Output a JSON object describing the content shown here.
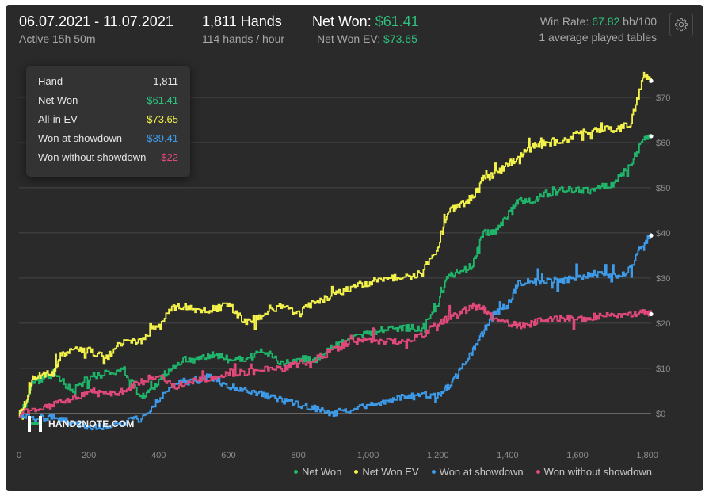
{
  "header": {
    "date_range": "06.07.2021 - 11.07.2021",
    "active": "Active 15h 50m",
    "hands_label": "1,811 Hands",
    "hands_rate": "114 hands / hour",
    "net_won_label": "Net Won:",
    "net_won_value": "$61.41",
    "net_won_ev_label": "Net Won  EV:",
    "net_won_ev_value": "$73.65",
    "win_rate_label": "Win Rate:",
    "win_rate_value": "67.82",
    "win_rate_unit": "bb/100",
    "tables": "1 average played tables",
    "settings_icon": "gear-icon"
  },
  "tooltip": {
    "rows": [
      {
        "label": "Hand",
        "value": "1,811",
        "color": "#e6e6e6"
      },
      {
        "label": "Net Won",
        "value": "$61.41",
        "color": "#2ec27e"
      },
      {
        "label": "All-in EV",
        "value": "$73.65",
        "color": "#f2f24a"
      },
      {
        "label": "Won at showdown",
        "value": "$39.41",
        "color": "#3d9be9"
      },
      {
        "label": "Won without showdown",
        "value": "$22",
        "color": "#e0497a"
      }
    ]
  },
  "logo": {
    "text": "HAND2NOTE.COM"
  },
  "colors": {
    "net_won": "#1fb56a",
    "ev": "#f2f24a",
    "sd": "#3d9be9",
    "nsd": "#e0497a"
  },
  "chart_data": {
    "type": "line",
    "x_ticks": [
      "0",
      "200",
      "400",
      "600",
      "800",
      "1,000",
      "1,200",
      "1,400",
      "1,600",
      "1,800"
    ],
    "y_ticks": [
      "$0",
      "$10",
      "$20",
      "$30",
      "$40",
      "$50",
      "$60",
      "$70"
    ],
    "xlim": [
      0,
      1811
    ],
    "ylim": [
      -6,
      80
    ],
    "grid": true,
    "legend_position": "bottom-right",
    "series": [
      {
        "name": "Net Won",
        "color": "#1fb56a",
        "end_marker": true,
        "points": [
          [
            0,
            0
          ],
          [
            20,
            2
          ],
          [
            40,
            7
          ],
          [
            60,
            7.5
          ],
          [
            100,
            9
          ],
          [
            150,
            5
          ],
          [
            200,
            8
          ],
          [
            250,
            9
          ],
          [
            300,
            9.5
          ],
          [
            350,
            3.5
          ],
          [
            380,
            5
          ],
          [
            420,
            9
          ],
          [
            470,
            12
          ],
          [
            520,
            12
          ],
          [
            560,
            13
          ],
          [
            600,
            12
          ],
          [
            650,
            12
          ],
          [
            700,
            14
          ],
          [
            750,
            11
          ],
          [
            800,
            12
          ],
          [
            850,
            12
          ],
          [
            900,
            15
          ],
          [
            950,
            16.5
          ],
          [
            1000,
            18
          ],
          [
            1050,
            18.5
          ],
          [
            1100,
            19
          ],
          [
            1150,
            19
          ],
          [
            1200,
            24
          ],
          [
            1230,
            31
          ],
          [
            1260,
            31
          ],
          [
            1300,
            33
          ],
          [
            1330,
            40
          ],
          [
            1360,
            40
          ],
          [
            1400,
            44
          ],
          [
            1430,
            47
          ],
          [
            1470,
            47
          ],
          [
            1500,
            48.5
          ],
          [
            1550,
            49.5
          ],
          [
            1600,
            49.5
          ],
          [
            1650,
            49.5
          ],
          [
            1700,
            51
          ],
          [
            1750,
            55
          ],
          [
            1790,
            61
          ],
          [
            1811,
            61.41
          ]
        ]
      },
      {
        "name": "Net Won  EV",
        "color": "#f2f24a",
        "end_marker": true,
        "points": [
          [
            0,
            0
          ],
          [
            20,
            2.5
          ],
          [
            40,
            8
          ],
          [
            60,
            8.5
          ],
          [
            100,
            9
          ],
          [
            120,
            13
          ],
          [
            150,
            14
          ],
          [
            200,
            14
          ],
          [
            250,
            12.5
          ],
          [
            300,
            16
          ],
          [
            350,
            16
          ],
          [
            400,
            20
          ],
          [
            450,
            24
          ],
          [
            500,
            23
          ],
          [
            550,
            23
          ],
          [
            600,
            24
          ],
          [
            650,
            20
          ],
          [
            700,
            22
          ],
          [
            750,
            24
          ],
          [
            800,
            22
          ],
          [
            850,
            25
          ],
          [
            900,
            26
          ],
          [
            950,
            28
          ],
          [
            1000,
            29
          ],
          [
            1050,
            30
          ],
          [
            1100,
            30
          ],
          [
            1150,
            31
          ],
          [
            1200,
            37
          ],
          [
            1230,
            45
          ],
          [
            1260,
            46
          ],
          [
            1300,
            48
          ],
          [
            1330,
            52
          ],
          [
            1360,
            53
          ],
          [
            1400,
            55
          ],
          [
            1430,
            57
          ],
          [
            1470,
            59
          ],
          [
            1500,
            60
          ],
          [
            1550,
            60
          ],
          [
            1600,
            62
          ],
          [
            1650,
            63
          ],
          [
            1700,
            63
          ],
          [
            1750,
            64
          ],
          [
            1790,
            75
          ],
          [
            1811,
            73.65
          ]
        ]
      },
      {
        "name": "Won at showdown",
        "color": "#3d9be9",
        "end_marker": true,
        "points": [
          [
            0,
            0
          ],
          [
            50,
            -1
          ],
          [
            100,
            -1
          ],
          [
            150,
            -2
          ],
          [
            200,
            -3
          ],
          [
            250,
            -3
          ],
          [
            300,
            -2
          ],
          [
            350,
            -1
          ],
          [
            400,
            3
          ],
          [
            450,
            7
          ],
          [
            500,
            7
          ],
          [
            550,
            8
          ],
          [
            600,
            6
          ],
          [
            650,
            5
          ],
          [
            700,
            4
          ],
          [
            750,
            3
          ],
          [
            800,
            2
          ],
          [
            850,
            1
          ],
          [
            900,
            0
          ],
          [
            950,
            1
          ],
          [
            1000,
            1.5
          ],
          [
            1050,
            3
          ],
          [
            1100,
            3.5
          ],
          [
            1150,
            4
          ],
          [
            1200,
            4
          ],
          [
            1230,
            6
          ],
          [
            1260,
            9
          ],
          [
            1300,
            14
          ],
          [
            1330,
            18
          ],
          [
            1360,
            22
          ],
          [
            1400,
            24
          ],
          [
            1430,
            29
          ],
          [
            1470,
            29
          ],
          [
            1500,
            29.5
          ],
          [
            1550,
            29.5
          ],
          [
            1600,
            30
          ],
          [
            1650,
            31
          ],
          [
            1700,
            30
          ],
          [
            1750,
            32
          ],
          [
            1790,
            38
          ],
          [
            1811,
            39.41
          ]
        ]
      },
      {
        "name": "Won without showdown",
        "color": "#e0497a",
        "end_marker": true,
        "points": [
          [
            0,
            0
          ],
          [
            50,
            1
          ],
          [
            100,
            2
          ],
          [
            150,
            3
          ],
          [
            200,
            5
          ],
          [
            250,
            4
          ],
          [
            300,
            5
          ],
          [
            350,
            7
          ],
          [
            400,
            8
          ],
          [
            450,
            6
          ],
          [
            500,
            7
          ],
          [
            550,
            8
          ],
          [
            600,
            9
          ],
          [
            650,
            9
          ],
          [
            700,
            10
          ],
          [
            750,
            10
          ],
          [
            800,
            11
          ],
          [
            850,
            12
          ],
          [
            900,
            14
          ],
          [
            950,
            16
          ],
          [
            1000,
            16.5
          ],
          [
            1050,
            16
          ],
          [
            1100,
            16
          ],
          [
            1150,
            17
          ],
          [
            1200,
            20
          ],
          [
            1230,
            21
          ],
          [
            1260,
            22
          ],
          [
            1300,
            24
          ],
          [
            1330,
            23
          ],
          [
            1360,
            21
          ],
          [
            1400,
            20
          ],
          [
            1430,
            19.5
          ],
          [
            1470,
            20
          ],
          [
            1500,
            20.5
          ],
          [
            1550,
            21
          ],
          [
            1600,
            21
          ],
          [
            1650,
            21.5
          ],
          [
            1700,
            21.5
          ],
          [
            1750,
            22
          ],
          [
            1790,
            22.5
          ],
          [
            1811,
            22
          ]
        ]
      }
    ]
  }
}
